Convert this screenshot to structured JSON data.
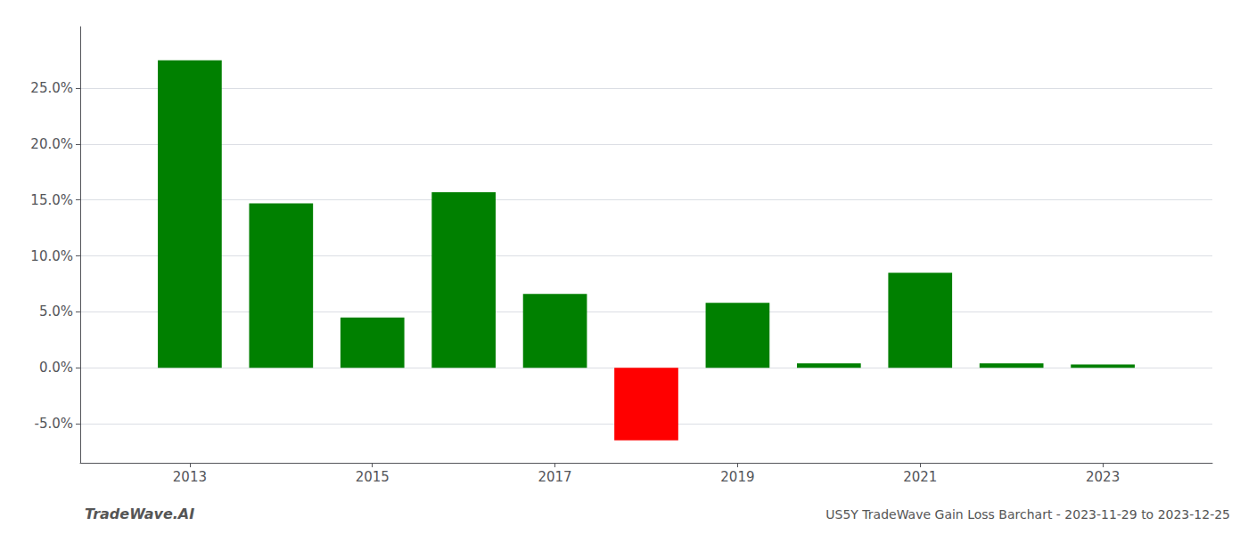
{
  "chart_data": {
    "type": "bar",
    "title": "US5Y TradeWave Gain Loss Barchart - 2023-11-29 to 2023-12-25",
    "annotations": [
      "TradeWave.AI"
    ],
    "x": [
      2013,
      2014,
      2015,
      2016,
      2017,
      2018,
      2019,
      2020,
      2021,
      2022,
      2023
    ],
    "values": [
      0.275,
      0.147,
      0.045,
      0.157,
      0.066,
      -0.065,
      0.058,
      0.004,
      0.085,
      0.004,
      0.003
    ],
    "colors": [
      "#008000",
      "#008000",
      "#008000",
      "#008000",
      "#008000",
      "#ff0000",
      "#008000",
      "#008000",
      "#008000",
      "#008000",
      "#008000"
    ],
    "xlim": [
      2011.8,
      2024.2
    ],
    "xticks": [
      2013,
      2015,
      2017,
      2019,
      2021,
      2023
    ],
    "ylim": [
      -0.085,
      0.305
    ],
    "yticks": [
      {
        "value": -0.05,
        "label": "-5.0%"
      },
      {
        "value": 0.0,
        "label": "0.0%"
      },
      {
        "value": 0.05,
        "label": "5.0%"
      },
      {
        "value": 0.1,
        "label": "10.0%"
      },
      {
        "value": 0.15,
        "label": "15.0%"
      },
      {
        "value": 0.2,
        "label": "20.0%"
      },
      {
        "value": 0.25,
        "label": "25.0%"
      }
    ],
    "grid": true
  }
}
